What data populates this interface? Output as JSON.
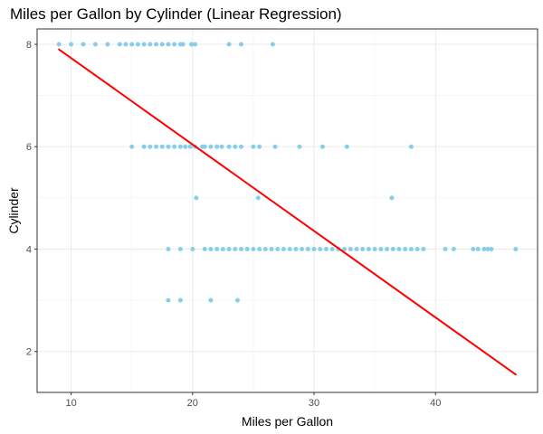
{
  "chart_data": {
    "type": "scatter",
    "title": "Miles per Gallon by Cylinder (Linear Regression)",
    "xlabel": "Miles per Gallon",
    "ylabel": "Cylinder",
    "xlim": [
      7.2,
      48.4
    ],
    "ylim": [
      1.2,
      8.3
    ],
    "x_ticks": [
      10,
      20,
      30,
      40
    ],
    "y_ticks": [
      2,
      4,
      6,
      8
    ],
    "grid": true,
    "legend": "none",
    "point_color": "#87CEEB",
    "line_color": "#FF0000",
    "points": [
      [
        9,
        8
      ],
      [
        10,
        8
      ],
      [
        11,
        8
      ],
      [
        12,
        8
      ],
      [
        13,
        8
      ],
      [
        14,
        8
      ],
      [
        14.5,
        8
      ],
      [
        15,
        8
      ],
      [
        15.5,
        8
      ],
      [
        16,
        8
      ],
      [
        16.5,
        8
      ],
      [
        17,
        8
      ],
      [
        17.5,
        8
      ],
      [
        18,
        8
      ],
      [
        18.5,
        8
      ],
      [
        19,
        8
      ],
      [
        19.2,
        8
      ],
      [
        19.9,
        8
      ],
      [
        20.2,
        8
      ],
      [
        23,
        8
      ],
      [
        24,
        8
      ],
      [
        26.6,
        8
      ],
      [
        15,
        6
      ],
      [
        16,
        6
      ],
      [
        16.5,
        6
      ],
      [
        17,
        6
      ],
      [
        17.5,
        6
      ],
      [
        18,
        6
      ],
      [
        18.5,
        6
      ],
      [
        19,
        6
      ],
      [
        19.4,
        6
      ],
      [
        19.8,
        6
      ],
      [
        20.2,
        6
      ],
      [
        20.8,
        6
      ],
      [
        21,
        6
      ],
      [
        21.5,
        6
      ],
      [
        22,
        6
      ],
      [
        22.4,
        6
      ],
      [
        23,
        6
      ],
      [
        23.5,
        6
      ],
      [
        24,
        6
      ],
      [
        25,
        6
      ],
      [
        25.5,
        6
      ],
      [
        26.8,
        6
      ],
      [
        28.8,
        6
      ],
      [
        30.7,
        6
      ],
      [
        32.7,
        6
      ],
      [
        38,
        6
      ],
      [
        20.3,
        5
      ],
      [
        25.4,
        5
      ],
      [
        36.4,
        5
      ],
      [
        18,
        4
      ],
      [
        19,
        4
      ],
      [
        20,
        4
      ],
      [
        21,
        4
      ],
      [
        21.5,
        4
      ],
      [
        22,
        4
      ],
      [
        22.5,
        4
      ],
      [
        23,
        4
      ],
      [
        23.5,
        4
      ],
      [
        24,
        4
      ],
      [
        24.5,
        4
      ],
      [
        25,
        4
      ],
      [
        25.5,
        4
      ],
      [
        26,
        4
      ],
      [
        26.5,
        4
      ],
      [
        27,
        4
      ],
      [
        27.5,
        4
      ],
      [
        28,
        4
      ],
      [
        28.5,
        4
      ],
      [
        29,
        4
      ],
      [
        29.5,
        4
      ],
      [
        30,
        4
      ],
      [
        30.5,
        4
      ],
      [
        31,
        4
      ],
      [
        31.5,
        4
      ],
      [
        32,
        4
      ],
      [
        32.5,
        4
      ],
      [
        33,
        4
      ],
      [
        33.5,
        4
      ],
      [
        34,
        4
      ],
      [
        34.5,
        4
      ],
      [
        35,
        4
      ],
      [
        35.5,
        4
      ],
      [
        36,
        4
      ],
      [
        36.5,
        4
      ],
      [
        37,
        4
      ],
      [
        37.5,
        4
      ],
      [
        38,
        4
      ],
      [
        38.5,
        4
      ],
      [
        39,
        4
      ],
      [
        40.8,
        4
      ],
      [
        41.5,
        4
      ],
      [
        43.1,
        4
      ],
      [
        43.5,
        4
      ],
      [
        44,
        4
      ],
      [
        44.3,
        4
      ],
      [
        44.6,
        4
      ],
      [
        46.6,
        4
      ],
      [
        18,
        3
      ],
      [
        19,
        3
      ],
      [
        21.5,
        3
      ],
      [
        23.7,
        3
      ]
    ],
    "regression_line": {
      "x": [
        9,
        46.6
      ],
      "y": [
        7.9,
        1.55
      ]
    }
  }
}
